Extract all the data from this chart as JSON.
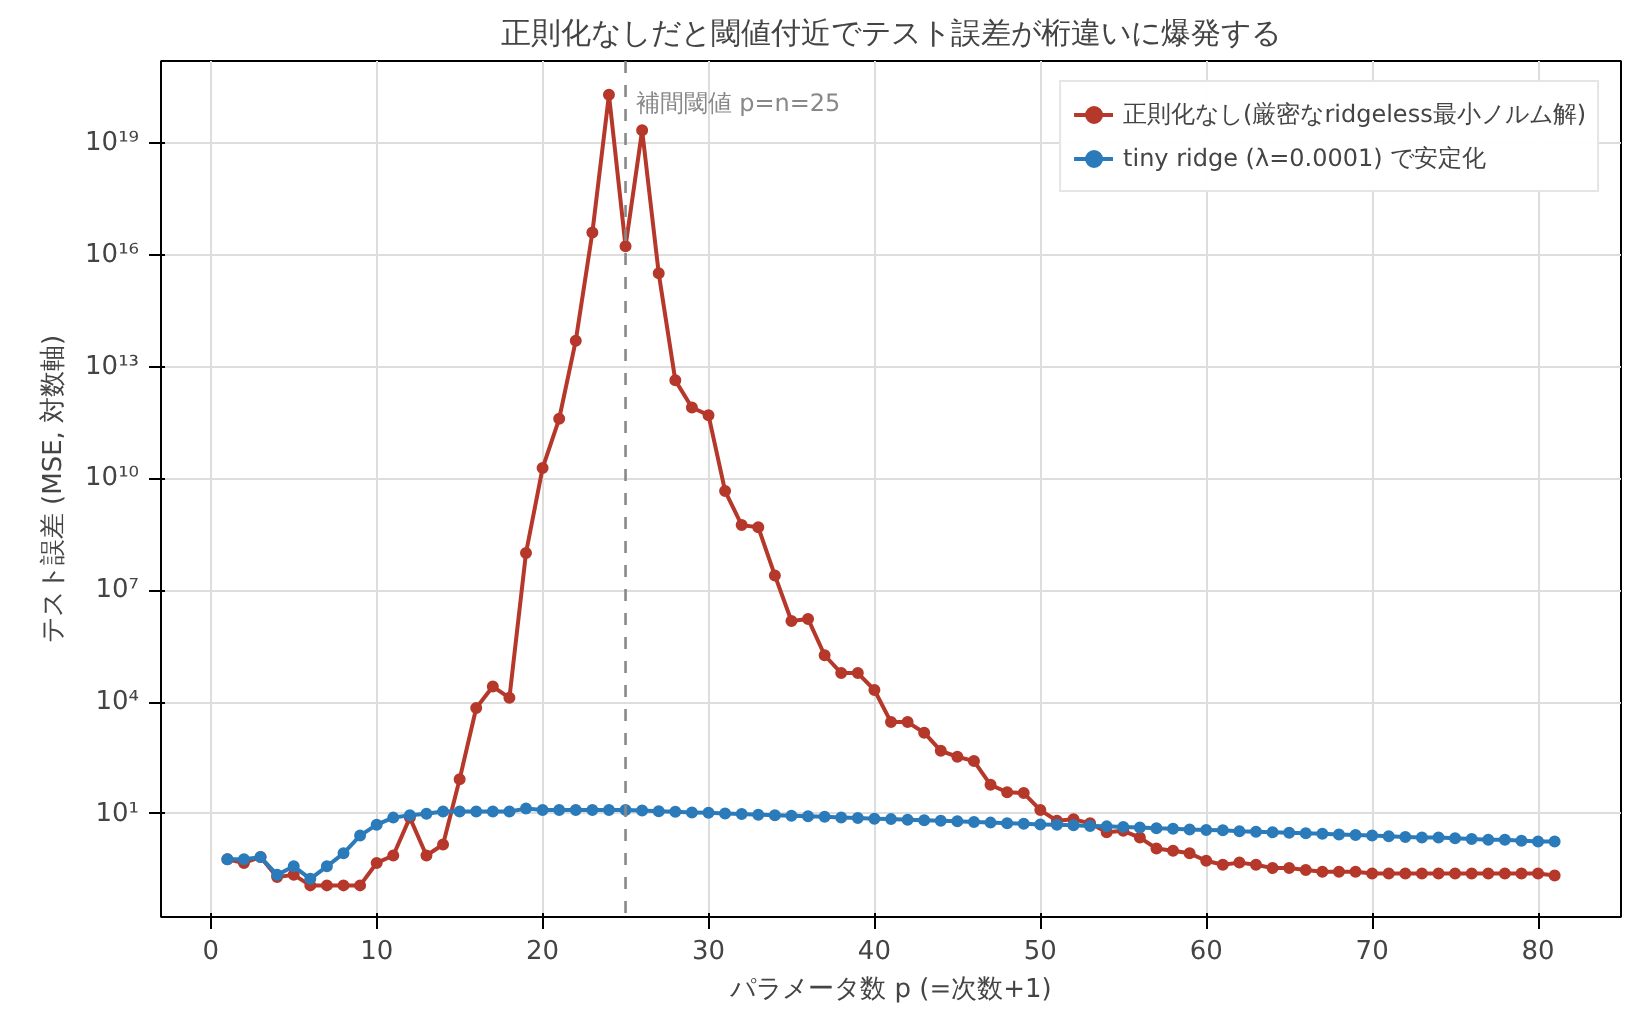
{
  "chart_data": {
    "type": "line",
    "title": "正則化なしだと閾値付近でテスト誤差が桁違いに爆発する",
    "xlabel": "パラメータ数 p (=次数+1)",
    "ylabel": "テスト誤差 (MSE, 対数軸)",
    "x": [
      1,
      2,
      3,
      4,
      5,
      6,
      7,
      8,
      9,
      10,
      11,
      12,
      13,
      14,
      15,
      16,
      17,
      18,
      19,
      20,
      21,
      22,
      23,
      24,
      25,
      26,
      27,
      28,
      29,
      30,
      31,
      32,
      33,
      34,
      35,
      36,
      37,
      38,
      39,
      40,
      41,
      42,
      43,
      44,
      45,
      46,
      47,
      48,
      49,
      50,
      51,
      52,
      53,
      54,
      55,
      56,
      57,
      58,
      59,
      60,
      61,
      62,
      63,
      64,
      65,
      66,
      67,
      68,
      69,
      70,
      71,
      72,
      73,
      74,
      75,
      76,
      77,
      78,
      79,
      80,
      81
    ],
    "series": [
      {
        "name": "正則化なし(厳密なridgeless最小ノルム解)",
        "color": "#b5382b",
        "values": [
          0.6,
          0.48,
          0.69,
          0.2,
          0.23,
          0.12,
          0.12,
          0.12,
          0.12,
          0.48,
          0.76,
          7.9,
          0.76,
          1.5,
          85,
          6900.0,
          26000.0,
          13000.0,
          100000000.0,
          19000000000.0,
          400000000000.0,
          50000000000000.0,
          4e+16,
          2e+20,
          1.7e+16,
          2.2e+19,
          3200000000000000.0,
          4300000000000.0,
          800000000000.0,
          500000000000.0,
          4600000000.0,
          560000000.0,
          490000000.0,
          25000000.0,
          1500000.0,
          1700000.0,
          180000.0,
          60000.0,
          60000.0,
          21000.0,
          2900.0,
          2900.0,
          1500.0,
          490,
          340,
          260,
          60,
          38,
          36,
          12.6,
          6.5,
          7.1,
          5.6,
          3.2,
          3.5,
          2.3,
          1.17,
          1.02,
          0.87,
          0.55,
          0.43,
          0.49,
          0.43,
          0.35,
          0.35,
          0.31,
          0.28,
          0.28,
          0.28,
          0.25,
          0.25,
          0.25,
          0.25,
          0.25,
          0.25,
          0.25,
          0.25,
          0.25,
          0.25,
          0.25,
          0.22
        ]
      },
      {
        "name": "tiny ridge (λ=0.0001) で安定化",
        "color": "#2b7bba",
        "values": [
          0.6,
          0.6,
          0.69,
          0.23,
          0.39,
          0.18,
          0.39,
          0.87,
          2.6,
          5.1,
          7.9,
          9.1,
          10,
          11.5,
          11.5,
          11.5,
          11.5,
          11.5,
          13.8,
          12.6,
          12.6,
          12.6,
          12.6,
          12.6,
          12.6,
          12.2,
          11.7,
          11.3,
          10.9,
          10.6,
          10.2,
          9.9,
          9.5,
          9.2,
          8.9,
          8.6,
          8.3,
          8.0,
          7.7,
          7.4,
          7.2,
          6.9,
          6.7,
          6.5,
          6.3,
          6.0,
          5.8,
          5.6,
          5.4,
          5.2,
          5.1,
          4.9,
          4.7,
          4.6,
          4.4,
          4.3,
          4.1,
          4.0,
          3.8,
          3.7,
          3.6,
          3.4,
          3.3,
          3.2,
          3.1,
          3.0,
          2.9,
          2.8,
          2.7,
          2.6,
          2.5,
          2.4,
          2.3,
          2.3,
          2.2,
          2.1,
          2.0,
          2.0,
          1.9,
          1.8,
          1.8
        ]
      }
    ],
    "xlim": [
      -3,
      85
    ],
    "xticks": [
      0,
      10,
      20,
      30,
      40,
      50,
      60,
      70,
      80
    ],
    "ylim": [
      0.017,
      1.6e+21
    ],
    "yticks": [
      {
        "value": 10,
        "label": "10¹"
      },
      {
        "value": 10000.0,
        "label": "10⁴"
      },
      {
        "value": 10000000.0,
        "label": "10⁷"
      },
      {
        "value": 10000000000.0,
        "label": "10¹⁰"
      },
      {
        "value": 10000000000000.0,
        "label": "10¹³"
      },
      {
        "value": 1e+16,
        "label": "10¹⁶"
      },
      {
        "value": 1e+19,
        "label": "10¹⁹"
      }
    ],
    "log": "y",
    "grid": true,
    "legend": "top right",
    "marker": "circle",
    "line_style": "solid",
    "ref_lines": [
      {
        "axis": "x",
        "value": 25,
        "label": "補間閾値 p=n=25",
        "color": "#888888",
        "line_style": "dashed"
      }
    ]
  }
}
